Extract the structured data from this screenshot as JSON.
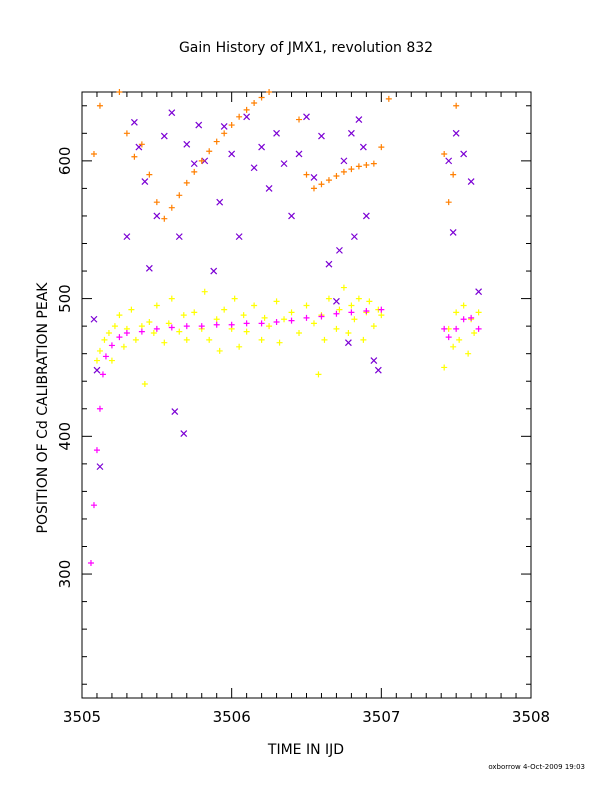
{
  "title": "Gain History of JMX1, revolution 832",
  "footer": "oxborrow  4-Oct-2009 19:03",
  "chart_data": {
    "type": "scatter",
    "title": "Gain History of JMX1, revolution 832",
    "xlabel": "TIME IN IJD",
    "ylabel": "POSITION OF Cd CALIBRATION PEAK",
    "xlim": [
      3505,
      3508
    ],
    "ylim": [
      210,
      650
    ],
    "xticks": [
      3505,
      3506,
      3507,
      3508
    ],
    "yticks": [
      300,
      400,
      500,
      600
    ],
    "xtick_labels": [
      "3505",
      "3506",
      "3507",
      "3508"
    ],
    "ytick_labels": [
      "300",
      "400",
      "500",
      "600"
    ],
    "grid": false,
    "legend": "none",
    "series": [
      {
        "marker": "cross",
        "color": "#ffff00",
        "points": [
          [
            3505.1,
            455
          ],
          [
            3505.12,
            462
          ],
          [
            3505.15,
            470
          ],
          [
            3505.18,
            475
          ],
          [
            3505.2,
            455
          ],
          [
            3505.22,
            480
          ],
          [
            3505.25,
            488
          ],
          [
            3505.28,
            465
          ],
          [
            3505.3,
            478
          ],
          [
            3505.33,
            492
          ],
          [
            3505.36,
            470
          ],
          [
            3505.4,
            480
          ],
          [
            3505.42,
            438
          ],
          [
            3505.45,
            483
          ],
          [
            3505.48,
            475
          ],
          [
            3505.5,
            495
          ],
          [
            3505.55,
            468
          ],
          [
            3505.58,
            482
          ],
          [
            3505.6,
            500
          ],
          [
            3505.65,
            476
          ],
          [
            3505.68,
            488
          ],
          [
            3505.7,
            470
          ],
          [
            3505.75,
            490
          ],
          [
            3505.8,
            478
          ],
          [
            3505.82,
            505
          ],
          [
            3505.85,
            470
          ],
          [
            3505.9,
            485
          ],
          [
            3505.92,
            462
          ],
          [
            3505.95,
            492
          ],
          [
            3506.0,
            478
          ],
          [
            3506.02,
            500
          ],
          [
            3506.05,
            465
          ],
          [
            3506.08,
            488
          ],
          [
            3506.1,
            476
          ],
          [
            3506.15,
            495
          ],
          [
            3506.2,
            470
          ],
          [
            3506.22,
            486
          ],
          [
            3506.25,
            480
          ],
          [
            3506.3,
            498
          ],
          [
            3506.32,
            468
          ],
          [
            3506.35,
            485
          ],
          [
            3506.4,
            490
          ],
          [
            3506.45,
            475
          ],
          [
            3506.5,
            495
          ],
          [
            3506.55,
            482
          ],
          [
            3506.58,
            445
          ],
          [
            3506.6,
            488
          ],
          [
            3506.62,
            470
          ],
          [
            3506.65,
            500
          ],
          [
            3506.7,
            478
          ],
          [
            3506.72,
            492
          ],
          [
            3506.75,
            508
          ],
          [
            3506.78,
            475
          ],
          [
            3506.8,
            495
          ],
          [
            3506.82,
            485
          ],
          [
            3506.85,
            500
          ],
          [
            3506.88,
            470
          ],
          [
            3506.9,
            490
          ],
          [
            3506.92,
            498
          ],
          [
            3506.95,
            480
          ],
          [
            3506.98,
            492
          ],
          [
            3507.0,
            488
          ],
          [
            3507.42,
            450
          ],
          [
            3507.45,
            478
          ],
          [
            3507.48,
            465
          ],
          [
            3507.5,
            490
          ],
          [
            3507.52,
            470
          ],
          [
            3507.55,
            495
          ],
          [
            3507.58,
            460
          ],
          [
            3507.6,
            485
          ],
          [
            3507.62,
            475
          ],
          [
            3507.65,
            490
          ]
        ]
      },
      {
        "marker": "x",
        "color": "#7b00d4",
        "points": [
          [
            3505.08,
            485
          ],
          [
            3505.1,
            448
          ],
          [
            3505.12,
            378
          ],
          [
            3505.3,
            545
          ],
          [
            3505.35,
            628
          ],
          [
            3505.38,
            610
          ],
          [
            3505.42,
            585
          ],
          [
            3505.45,
            522
          ],
          [
            3505.5,
            560
          ],
          [
            3505.55,
            618
          ],
          [
            3505.6,
            635
          ],
          [
            3505.62,
            418
          ],
          [
            3505.65,
            545
          ],
          [
            3505.68,
            402
          ],
          [
            3505.7,
            612
          ],
          [
            3505.75,
            598
          ],
          [
            3505.78,
            626
          ],
          [
            3505.82,
            600
          ],
          [
            3505.88,
            520
          ],
          [
            3505.92,
            570
          ],
          [
            3505.95,
            625
          ],
          [
            3506.0,
            605
          ],
          [
            3506.05,
            545
          ],
          [
            3506.1,
            632
          ],
          [
            3506.15,
            595
          ],
          [
            3506.2,
            610
          ],
          [
            3506.25,
            580
          ],
          [
            3506.3,
            620
          ],
          [
            3506.35,
            598
          ],
          [
            3506.4,
            560
          ],
          [
            3506.45,
            605
          ],
          [
            3506.5,
            632
          ],
          [
            3506.55,
            588
          ],
          [
            3506.6,
            618
          ],
          [
            3506.65,
            525
          ],
          [
            3506.7,
            498
          ],
          [
            3506.72,
            535
          ],
          [
            3506.75,
            600
          ],
          [
            3506.78,
            468
          ],
          [
            3506.8,
            620
          ],
          [
            3506.82,
            545
          ],
          [
            3506.85,
            630
          ],
          [
            3506.88,
            610
          ],
          [
            3506.9,
            560
          ],
          [
            3506.95,
            455
          ],
          [
            3506.98,
            448
          ],
          [
            3507.45,
            600
          ],
          [
            3507.48,
            548
          ],
          [
            3507.5,
            620
          ],
          [
            3507.55,
            605
          ],
          [
            3507.6,
            585
          ],
          [
            3507.65,
            505
          ]
        ]
      },
      {
        "marker": "cross",
        "color": "#ff7f00",
        "points": [
          [
            3505.08,
            605
          ],
          [
            3505.12,
            640
          ],
          [
            3505.15,
            680
          ],
          [
            3505.2,
            690
          ],
          [
            3505.25,
            650
          ],
          [
            3505.3,
            620
          ],
          [
            3505.35,
            603
          ],
          [
            3505.4,
            612
          ],
          [
            3505.45,
            590
          ],
          [
            3505.5,
            570
          ],
          [
            3505.55,
            558
          ],
          [
            3505.6,
            566
          ],
          [
            3505.65,
            575
          ],
          [
            3505.7,
            584
          ],
          [
            3505.75,
            592
          ],
          [
            3505.8,
            600
          ],
          [
            3505.85,
            607
          ],
          [
            3505.9,
            614
          ],
          [
            3505.95,
            620
          ],
          [
            3506.0,
            626
          ],
          [
            3506.05,
            632
          ],
          [
            3506.1,
            637
          ],
          [
            3506.15,
            642
          ],
          [
            3506.2,
            646
          ],
          [
            3506.25,
            650
          ],
          [
            3506.4,
            660
          ],
          [
            3506.45,
            630
          ],
          [
            3506.5,
            590
          ],
          [
            3506.55,
            580
          ],
          [
            3506.6,
            583
          ],
          [
            3506.65,
            586
          ],
          [
            3506.7,
            589
          ],
          [
            3506.75,
            592
          ],
          [
            3506.8,
            594
          ],
          [
            3506.85,
            596
          ],
          [
            3506.9,
            597
          ],
          [
            3506.95,
            598
          ],
          [
            3507.0,
            610
          ],
          [
            3507.05,
            645
          ],
          [
            3507.42,
            605
          ],
          [
            3507.45,
            570
          ],
          [
            3507.48,
            590
          ],
          [
            3507.5,
            640
          ],
          [
            3507.55,
            660
          ]
        ]
      },
      {
        "marker": "cross",
        "color": "#ff00ff",
        "points": [
          [
            3505.06,
            308
          ],
          [
            3505.08,
            350
          ],
          [
            3505.1,
            390
          ],
          [
            3505.12,
            420
          ],
          [
            3505.14,
            445
          ],
          [
            3505.16,
            458
          ],
          [
            3505.2,
            466
          ],
          [
            3505.25,
            472
          ],
          [
            3505.3,
            475
          ],
          [
            3505.4,
            476
          ],
          [
            3505.5,
            478
          ],
          [
            3505.6,
            479
          ],
          [
            3505.7,
            480
          ],
          [
            3505.8,
            480
          ],
          [
            3505.9,
            481
          ],
          [
            3506.0,
            481
          ],
          [
            3506.1,
            482
          ],
          [
            3506.2,
            482
          ],
          [
            3506.3,
            483
          ],
          [
            3506.4,
            484
          ],
          [
            3506.5,
            486
          ],
          [
            3506.6,
            487
          ],
          [
            3506.7,
            489
          ],
          [
            3506.8,
            490
          ],
          [
            3506.9,
            491
          ],
          [
            3507.0,
            492
          ],
          [
            3507.42,
            478
          ],
          [
            3507.45,
            472
          ],
          [
            3507.5,
            478
          ],
          [
            3507.55,
            485
          ],
          [
            3507.6,
            486
          ],
          [
            3507.65,
            478
          ]
        ]
      }
    ]
  }
}
